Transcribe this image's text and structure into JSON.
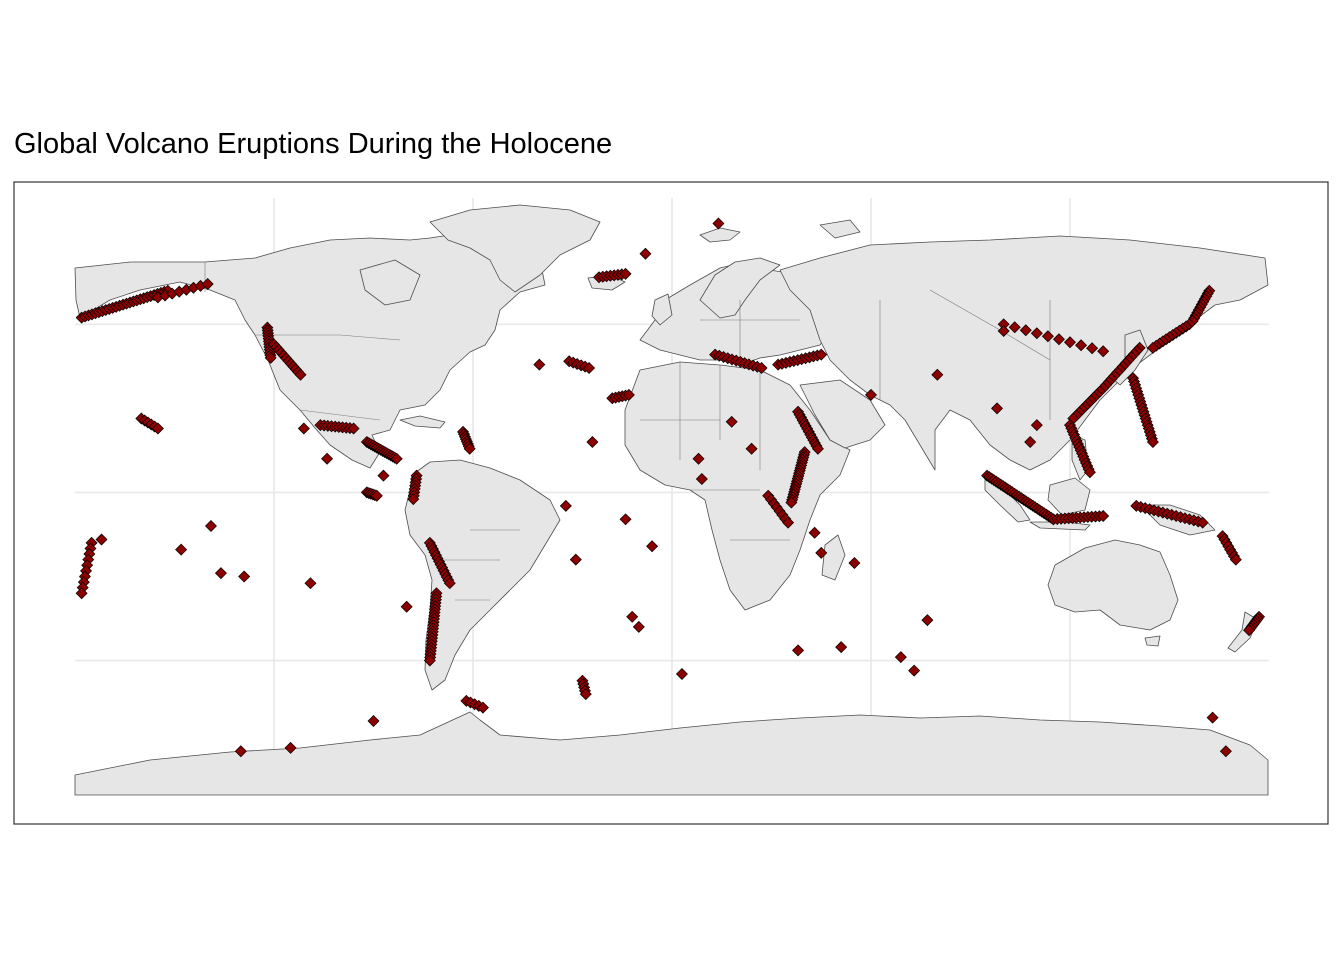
{
  "title": "Global Volcano Eruptions During the Holocene",
  "colors": {
    "background": "#ffffff",
    "panel_border": "#333333",
    "land_fill": "#e6e6e6",
    "land_outline": "#4d4d4d",
    "gridline": "#e8e8e8",
    "marker_fill": "#8b0000",
    "marker_outline": "#000000"
  },
  "map": {
    "projection": "equirectangular",
    "lon_range": [
      -180,
      180
    ],
    "lat_range": [
      -90,
      84
    ],
    "graticule_lon": [
      -120,
      -60,
      0,
      60,
      120
    ],
    "graticule_lat": [
      -50,
      0,
      50
    ],
    "marker_shape": "diamond",
    "axis_labels_shown": false
  },
  "chart_data": {
    "type": "scatter",
    "title": "Global Volcano Eruptions During the Holocene",
    "xlabel": "",
    "ylabel": "",
    "xlim": [
      -180,
      180
    ],
    "ylim": [
      -90,
      84
    ],
    "grid": true,
    "legend": "none",
    "x_name": "longitude",
    "y_name": "latitude",
    "segments": [
      {
        "region": "aleutian-arc",
        "from": [
          -178,
          52
        ],
        "to": [
          -152,
          60
        ],
        "n": 26
      },
      {
        "region": "alaska",
        "from": [
          -155,
          58
        ],
        "to": [
          -140,
          62
        ],
        "n": 8
      },
      {
        "region": "cascades",
        "from": [
          -122,
          49
        ],
        "to": [
          -121,
          40
        ],
        "n": 12
      },
      {
        "region": "western-us",
        "from": [
          -120,
          44
        ],
        "to": [
          -112,
          35
        ],
        "n": 12
      },
      {
        "region": "mexico-belt",
        "from": [
          -106,
          20
        ],
        "to": [
          -96,
          19
        ],
        "n": 10
      },
      {
        "region": "central-america",
        "from": [
          -92,
          15
        ],
        "to": [
          -83,
          10
        ],
        "n": 16
      },
      {
        "region": "lesser-antilles",
        "from": [
          -63,
          18
        ],
        "to": [
          -61,
          13
        ],
        "n": 8
      },
      {
        "region": "northern-andes",
        "from": [
          -77,
          5
        ],
        "to": [
          -78,
          -2
        ],
        "n": 8
      },
      {
        "region": "central-andes",
        "from": [
          -73,
          -15
        ],
        "to": [
          -67,
          -27
        ],
        "n": 14
      },
      {
        "region": "southern-andes",
        "from": [
          -71,
          -30
        ],
        "to": [
          -73,
          -50
        ],
        "n": 22
      },
      {
        "region": "south-sandwich",
        "from": [
          -27,
          -56
        ],
        "to": [
          -26,
          -60
        ],
        "n": 5
      },
      {
        "region": "antarctic-peninsula",
        "from": [
          -62,
          -62
        ],
        "to": [
          -57,
          -64
        ],
        "n": 5
      },
      {
        "region": "iceland",
        "from": [
          -22,
          64
        ],
        "to": [
          -14,
          65
        ],
        "n": 8
      },
      {
        "region": "azores",
        "from": [
          -31,
          39
        ],
        "to": [
          -25,
          37
        ],
        "n": 6
      },
      {
        "region": "canary-islands",
        "from": [
          -18,
          28
        ],
        "to": [
          -13,
          29
        ],
        "n": 6
      },
      {
        "region": "italy-aegean",
        "from": [
          13,
          41
        ],
        "to": [
          27,
          37
        ],
        "n": 12
      },
      {
        "region": "turkey-caucasus",
        "from": [
          32,
          38
        ],
        "to": [
          45,
          41
        ],
        "n": 12
      },
      {
        "region": "red-sea-arabia",
        "from": [
          38,
          24
        ],
        "to": [
          44,
          13
        ],
        "n": 14
      },
      {
        "region": "east-african-rift",
        "from": [
          40,
          12
        ],
        "to": [
          36,
          -3
        ],
        "n": 20
      },
      {
        "region": "western-rift",
        "from": [
          29,
          -1
        ],
        "to": [
          35,
          -9
        ],
        "n": 8
      },
      {
        "region": "kamchatka",
        "from": [
          162,
          60
        ],
        "to": [
          157,
          51
        ],
        "n": 12
      },
      {
        "region": "kuril-islands",
        "from": [
          156,
          50
        ],
        "to": [
          145,
          43
        ],
        "n": 12
      },
      {
        "region": "japan",
        "from": [
          141,
          43
        ],
        "to": [
          130,
          31
        ],
        "n": 14
      },
      {
        "region": "izu-bonin-mariana",
        "from": [
          139,
          34
        ],
        "to": [
          145,
          15
        ],
        "n": 20
      },
      {
        "region": "ryukyu-taiwan",
        "from": [
          129,
          30
        ],
        "to": [
          121,
          22
        ],
        "n": 10
      },
      {
        "region": "philippines",
        "from": [
          120,
          20
        ],
        "to": [
          126,
          6
        ],
        "n": 16
      },
      {
        "region": "sumatra-java",
        "from": [
          95,
          5
        ],
        "to": [
          115,
          -8
        ],
        "n": 30
      },
      {
        "region": "banda-arc",
        "from": [
          115,
          -8
        ],
        "to": [
          130,
          -7
        ],
        "n": 14
      },
      {
        "region": "new-guinea-solomons",
        "from": [
          140,
          -4
        ],
        "to": [
          160,
          -9
        ],
        "n": 16
      },
      {
        "region": "vanuatu",
        "from": [
          166,
          -13
        ],
        "to": [
          170,
          -20
        ],
        "n": 8
      },
      {
        "region": "tonga-kermadec",
        "from": [
          -175,
          -15
        ],
        "to": [
          -178,
          -30
        ],
        "n": 10
      },
      {
        "region": "new-zealand",
        "from": [
          177,
          -37
        ],
        "to": [
          174,
          -41
        ],
        "n": 8
      },
      {
        "region": "hawaii",
        "from": [
          -160,
          22
        ],
        "to": [
          -155,
          19
        ],
        "n": 6
      },
      {
        "region": "galapagos",
        "from": [
          -92,
          0
        ],
        "to": [
          -89,
          -1
        ],
        "n": 6
      },
      {
        "region": "northeast-asia",
        "from": [
          100,
          50
        ],
        "to": [
          130,
          42
        ],
        "n": 10
      }
    ],
    "points": [
      {
        "region": "jan-mayen-svalbard",
        "lon": -8,
        "lat": 71
      },
      {
        "region": "arctic-north",
        "lon": 14,
        "lat": 80
      },
      {
        "region": "cameroon",
        "lon": 9,
        "lat": 4
      },
      {
        "region": "nigeria",
        "lon": 8,
        "lat": 10
      },
      {
        "region": "tibesti",
        "lon": 18,
        "lat": 21
      },
      {
        "region": "darfur",
        "lon": 24,
        "lat": 13
      },
      {
        "region": "cape-verde",
        "lon": -24,
        "lat": 15
      },
      {
        "region": "ascension",
        "lon": -14,
        "lat": -8
      },
      {
        "region": "st-helena",
        "lon": -6,
        "lat": -16
      },
      {
        "region": "tristan-da-cunha",
        "lon": -12,
        "lat": -37
      },
      {
        "region": "gough",
        "lon": -10,
        "lat": -40
      },
      {
        "region": "bouvet",
        "lon": 3,
        "lat": -54
      },
      {
        "region": "comoros",
        "lon": 43,
        "lat": -12
      },
      {
        "region": "madagascar",
        "lon": 45,
        "lat": -18
      },
      {
        "region": "reunion",
        "lon": 55,
        "lat": -21
      },
      {
        "region": "prince-edward",
        "lon": 38,
        "lat": -47
      },
      {
        "region": "crozet",
        "lon": 51,
        "lat": -46
      },
      {
        "region": "kerguelen",
        "lon": 69,
        "lat": -49
      },
      {
        "region": "heard",
        "lon": 73,
        "lat": -53
      },
      {
        "region": "amsterdam",
        "lon": 77,
        "lat": -38
      },
      {
        "region": "iran",
        "lon": 60,
        "lat": 29
      },
      {
        "region": "tibet",
        "lon": 80,
        "lat": 35
      },
      {
        "region": "mongolia",
        "lon": 100,
        "lat": 48
      },
      {
        "region": "yunnan",
        "lon": 98,
        "lat": 25
      },
      {
        "region": "hainan",
        "lon": 110,
        "lat": 20
      },
      {
        "region": "vietnam",
        "lon": 108,
        "lat": 15
      },
      {
        "region": "marquesas",
        "lon": -139,
        "lat": -10
      },
      {
        "region": "society-islands",
        "lon": -148,
        "lat": -17
      },
      {
        "region": "austral",
        "lon": -136,
        "lat": -24
      },
      {
        "region": "pitcairn",
        "lon": -129,
        "lat": -25
      },
      {
        "region": "samoa",
        "lon": -172,
        "lat": -14
      },
      {
        "region": "easter-island",
        "lon": -109,
        "lat": -27
      },
      {
        "region": "juan-fernandez",
        "lon": -80,
        "lat": -34
      },
      {
        "region": "socorro",
        "lon": -111,
        "lat": 19
      },
      {
        "region": "clipperton",
        "lon": -104,
        "lat": 10
      },
      {
        "region": "fernando-de-noronha",
        "lon": -32,
        "lat": -4
      },
      {
        "region": "trindade",
        "lon": -29,
        "lat": -20
      },
      {
        "region": "mount-erebus",
        "lon": 167,
        "lat": -77
      },
      {
        "region": "marie-byrd-land",
        "lon": -130,
        "lat": -77
      },
      {
        "region": "marie-byrd-land-2",
        "lon": -115,
        "lat": -76
      },
      {
        "region": "balleny",
        "lon": 163,
        "lat": -67
      },
      {
        "region": "peter-i",
        "lon": -90,
        "lat": -68
      },
      {
        "region": "cocos",
        "lon": -87,
        "lat": 5
      },
      {
        "region": "bermuda-region",
        "lon": -40,
        "lat": 38
      }
    ]
  }
}
